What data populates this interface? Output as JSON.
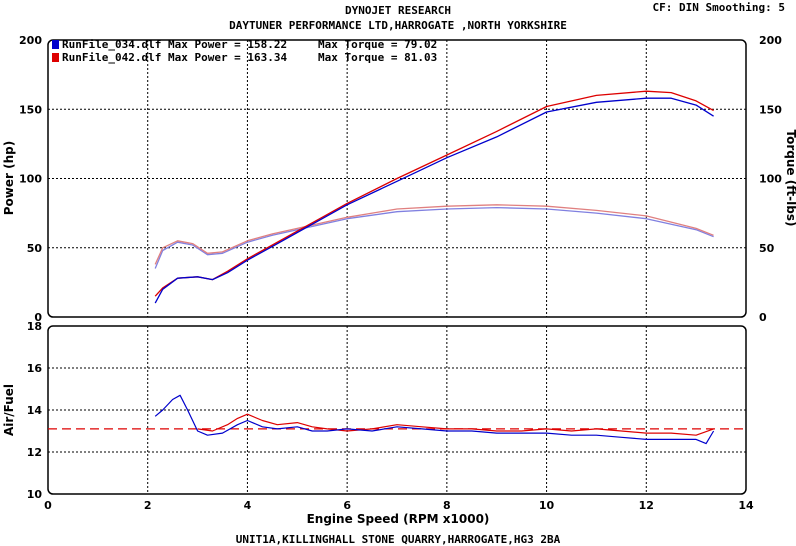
{
  "header": {
    "title": "DYNOJET RESEARCH",
    "subtitle": "DAYTUNER PERFORMANCE LTD,HARROGATE ,NORTH YORKSHIRE",
    "settings": "CF: DIN  Smoothing: 5"
  },
  "footer": {
    "address": "UNIT1A,KILLINGHALL STONE QUARRY,HARROGATE,HG3 2BA"
  },
  "colors": {
    "run1": "#0000cc",
    "run2": "#dd0000",
    "run1_torque": "#8080e0",
    "run2_torque": "#e08080",
    "target_afr": "#dd0000"
  },
  "chart_data": [
    {
      "type": "line",
      "ylabel": "Power (hp)",
      "y2label": "Torque (ft-lbs)",
      "xlim": [
        0,
        14
      ],
      "ylim": [
        0,
        200
      ],
      "y2lim": [
        0,
        200
      ],
      "xticks": [
        "0",
        "2",
        "4",
        "6",
        "8",
        "10",
        "12",
        "14"
      ],
      "yticks": [
        "0",
        "50",
        "100",
        "150",
        "200"
      ],
      "y2ticks": [
        "0",
        "50",
        "100",
        "150",
        "200"
      ],
      "grid": true,
      "legend": [
        {
          "name": "RunFile_034.dlf Max Power = 158.22",
          "torque": "Max Torque = 79.02"
        },
        {
          "name": "RunFile_042.dlf Max Power = 163.34",
          "torque": "Max Torque = 81.03"
        }
      ],
      "series": [
        {
          "name": "RunFile_034.dlf",
          "measure": "power",
          "x": [
            2.15,
            2.3,
            2.6,
            3.0,
            3.3,
            3.6,
            4.0,
            4.5,
            5.0,
            5.5,
            6.0,
            7.0,
            8.0,
            9.0,
            10.0,
            11.0,
            12.0,
            12.5,
            13.0,
            13.35
          ],
          "y": [
            10,
            20,
            28,
            29,
            27,
            32,
            41,
            51,
            61,
            71,
            81,
            98,
            115,
            130,
            148,
            155,
            158,
            158,
            153,
            145
          ]
        },
        {
          "name": "RunFile_042.dlf",
          "measure": "power",
          "x": [
            2.15,
            2.3,
            2.6,
            3.0,
            3.3,
            3.6,
            4.0,
            4.5,
            5.0,
            5.5,
            6.0,
            7.0,
            8.0,
            9.0,
            10.0,
            11.0,
            12.0,
            12.5,
            13.0,
            13.35
          ],
          "y": [
            15,
            21,
            28,
            29,
            27,
            33,
            42,
            52,
            62,
            72,
            82,
            100,
            117,
            134,
            152,
            160,
            163,
            162,
            156,
            149
          ]
        },
        {
          "name": "RunFile_034.dlf",
          "measure": "torque",
          "x": [
            2.15,
            2.3,
            2.6,
            2.9,
            3.2,
            3.5,
            4.0,
            4.5,
            5.0,
            6.0,
            7.0,
            8.0,
            9.0,
            10.0,
            11.0,
            12.0,
            13.0,
            13.35
          ],
          "y": [
            35,
            48,
            54,
            52,
            45,
            46,
            54,
            59,
            63,
            71,
            76,
            78,
            79,
            78,
            75,
            71,
            63,
            58
          ]
        },
        {
          "name": "RunFile_042.dlf",
          "measure": "torque",
          "x": [
            2.15,
            2.3,
            2.6,
            2.9,
            3.2,
            3.5,
            4.0,
            4.5,
            5.0,
            6.0,
            7.0,
            8.0,
            9.0,
            10.0,
            11.0,
            12.0,
            13.0,
            13.35
          ],
          "y": [
            38,
            50,
            55,
            53,
            46,
            47,
            55,
            60,
            64,
            72,
            78,
            80,
            81,
            80,
            77,
            73,
            64,
            59
          ]
        }
      ]
    },
    {
      "type": "line",
      "ylabel": "Air/Fuel",
      "xlabel": "Engine Speed (RPM x1000)",
      "xlim": [
        0,
        14
      ],
      "ylim": [
        10,
        18
      ],
      "xticks": [
        "0",
        "2",
        "4",
        "6",
        "8",
        "10",
        "12",
        "14"
      ],
      "yticks": [
        "10",
        "12",
        "14",
        "16",
        "18"
      ],
      "grid": true,
      "target_afr": 13.1,
      "series": [
        {
          "name": "RunFile_034.dlf",
          "x": [
            2.15,
            2.3,
            2.5,
            2.65,
            2.8,
            3.0,
            3.2,
            3.5,
            3.8,
            4.0,
            4.3,
            4.6,
            5.0,
            5.3,
            5.6,
            6.0,
            6.5,
            7.0,
            7.5,
            8.0,
            8.5,
            9.0,
            9.5,
            10.0,
            10.5,
            11.0,
            11.5,
            12.0,
            12.5,
            13.0,
            13.2,
            13.35
          ],
          "y": [
            13.7,
            14.0,
            14.5,
            14.7,
            14.0,
            13.0,
            12.8,
            12.9,
            13.3,
            13.5,
            13.2,
            13.1,
            13.2,
            13.0,
            13.0,
            13.1,
            13.0,
            13.2,
            13.1,
            13.0,
            13.0,
            12.9,
            12.9,
            12.9,
            12.8,
            12.8,
            12.7,
            12.6,
            12.6,
            12.6,
            12.4,
            13.0
          ]
        },
        {
          "name": "RunFile_042.dlf",
          "x": [
            3.0,
            3.3,
            3.6,
            3.8,
            4.0,
            4.3,
            4.6,
            5.0,
            5.3,
            5.6,
            6.0,
            6.5,
            7.0,
            7.5,
            8.0,
            8.5,
            9.0,
            9.5,
            10.0,
            10.5,
            11.0,
            11.5,
            12.0,
            12.5,
            13.0,
            13.35
          ],
          "y": [
            13.1,
            13.0,
            13.3,
            13.6,
            13.8,
            13.5,
            13.3,
            13.4,
            13.2,
            13.1,
            13.0,
            13.1,
            13.3,
            13.2,
            13.1,
            13.1,
            13.0,
            13.0,
            13.1,
            13.0,
            13.1,
            13.0,
            12.9,
            12.9,
            12.8,
            13.1
          ]
        }
      ]
    }
  ]
}
